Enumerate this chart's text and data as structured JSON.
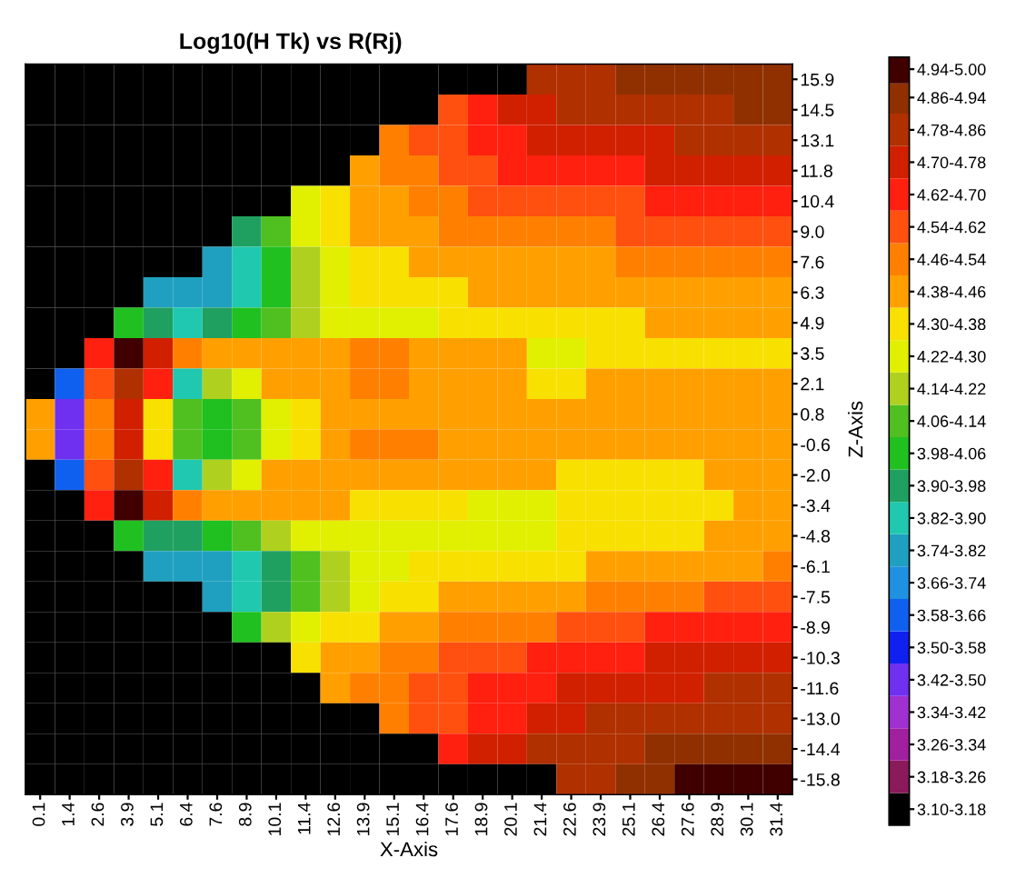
{
  "chart_data": {
    "type": "heatmap",
    "title": "Log10(H Tk) vs R(Rj)",
    "xlabel": "X-Axis",
    "ylabel": "Z-Axis",
    "categories": [
      "0.1",
      "1.4",
      "2.6",
      "3.9",
      "5.1",
      "6.4",
      "7.6",
      "8.9",
      "10.1",
      "11.4",
      "12.6",
      "13.9",
      "15.1",
      "16.4",
      "17.6",
      "18.9",
      "20.1",
      "21.4",
      "22.6",
      "23.9",
      "25.1",
      "26.4",
      "27.6",
      "28.9",
      "30.1",
      "31.4"
    ],
    "y_categories": [
      "15.9",
      "14.5",
      "13.1",
      "11.8",
      "10.4",
      "9.0",
      "7.6",
      "6.3",
      "4.9",
      "3.5",
      "2.1",
      "0.8",
      "-0.6",
      "-2.0",
      "-3.4",
      "-4.8",
      "-6.1",
      "-7.5",
      "-8.9",
      "-10.3",
      "-11.6",
      "-13.0",
      "-14.4",
      "-15.8"
    ],
    "cells": [
      [
        3.14,
        3.14,
        3.14,
        3.14,
        3.14,
        3.14,
        3.14,
        3.14,
        3.14,
        3.14,
        3.14,
        3.14,
        3.14,
        3.14,
        3.14,
        3.14,
        3.14,
        4.82,
        4.82,
        4.82,
        4.9,
        4.9,
        4.9,
        4.9,
        4.9,
        4.9
      ],
      [
        3.14,
        3.14,
        3.14,
        3.14,
        3.14,
        3.14,
        3.14,
        3.14,
        3.14,
        3.14,
        3.14,
        3.14,
        3.14,
        3.14,
        4.58,
        4.66,
        4.74,
        4.74,
        4.82,
        4.82,
        4.82,
        4.82,
        4.82,
        4.82,
        4.9,
        4.9
      ],
      [
        3.14,
        3.14,
        3.14,
        3.14,
        3.14,
        3.14,
        3.14,
        3.14,
        3.14,
        3.14,
        3.14,
        3.14,
        4.5,
        4.58,
        4.58,
        4.66,
        4.66,
        4.74,
        4.74,
        4.74,
        4.74,
        4.74,
        4.82,
        4.82,
        4.82,
        4.82
      ],
      [
        3.14,
        3.14,
        3.14,
        3.14,
        3.14,
        3.14,
        3.14,
        3.14,
        3.14,
        3.14,
        3.14,
        4.42,
        4.5,
        4.5,
        4.58,
        4.58,
        4.66,
        4.66,
        4.66,
        4.66,
        4.66,
        4.74,
        4.74,
        4.74,
        4.74,
        4.74
      ],
      [
        3.14,
        3.14,
        3.14,
        3.14,
        3.14,
        3.14,
        3.14,
        3.14,
        3.14,
        4.26,
        4.34,
        4.42,
        4.42,
        4.5,
        4.5,
        4.58,
        4.58,
        4.58,
        4.58,
        4.58,
        4.58,
        4.66,
        4.66,
        4.66,
        4.66,
        4.66
      ],
      [
        3.14,
        3.14,
        3.14,
        3.14,
        3.14,
        3.14,
        3.14,
        3.94,
        4.1,
        4.26,
        4.34,
        4.42,
        4.42,
        4.42,
        4.5,
        4.5,
        4.5,
        4.5,
        4.5,
        4.5,
        4.58,
        4.58,
        4.58,
        4.58,
        4.58,
        4.58
      ],
      [
        3.14,
        3.14,
        3.14,
        3.14,
        3.14,
        3.14,
        3.78,
        3.86,
        4.02,
        4.18,
        4.26,
        4.34,
        4.34,
        4.42,
        4.42,
        4.42,
        4.42,
        4.42,
        4.42,
        4.42,
        4.5,
        4.5,
        4.5,
        4.5,
        4.5,
        4.5
      ],
      [
        3.14,
        3.14,
        3.14,
        3.14,
        3.78,
        3.78,
        3.78,
        3.86,
        4.02,
        4.18,
        4.26,
        4.34,
        4.34,
        4.34,
        4.34,
        4.42,
        4.42,
        4.42,
        4.42,
        4.42,
        4.42,
        4.42,
        4.42,
        4.42,
        4.42,
        4.42
      ],
      [
        3.14,
        3.14,
        3.14,
        4.02,
        3.94,
        3.86,
        3.94,
        4.02,
        4.1,
        4.18,
        4.26,
        4.26,
        4.26,
        4.26,
        4.34,
        4.34,
        4.34,
        4.34,
        4.34,
        4.34,
        4.34,
        4.42,
        4.42,
        4.42,
        4.42,
        4.42
      ],
      [
        3.14,
        3.14,
        4.66,
        4.97,
        4.74,
        4.5,
        4.42,
        4.42,
        4.42,
        4.42,
        4.42,
        4.5,
        4.5,
        4.42,
        4.42,
        4.42,
        4.42,
        4.26,
        4.26,
        4.34,
        4.34,
        4.34,
        4.34,
        4.34,
        4.34,
        4.34
      ],
      [
        3.14,
        3.62,
        4.58,
        4.82,
        4.66,
        3.86,
        4.18,
        4.26,
        4.42,
        4.42,
        4.42,
        4.5,
        4.5,
        4.42,
        4.42,
        4.42,
        4.42,
        4.34,
        4.34,
        4.42,
        4.42,
        4.42,
        4.42,
        4.42,
        4.42,
        4.42
      ],
      [
        4.42,
        3.46,
        4.5,
        4.74,
        4.34,
        4.1,
        4.02,
        4.1,
        4.26,
        4.34,
        4.42,
        4.42,
        4.42,
        4.42,
        4.42,
        4.42,
        4.42,
        4.42,
        4.42,
        4.42,
        4.42,
        4.42,
        4.42,
        4.42,
        4.42,
        4.42
      ],
      [
        4.42,
        3.46,
        4.5,
        4.74,
        4.34,
        4.1,
        4.02,
        4.1,
        4.26,
        4.34,
        4.42,
        4.5,
        4.5,
        4.5,
        4.42,
        4.42,
        4.42,
        4.42,
        4.42,
        4.42,
        4.42,
        4.42,
        4.42,
        4.42,
        4.42,
        4.42
      ],
      [
        3.14,
        3.62,
        4.58,
        4.82,
        4.66,
        3.86,
        4.18,
        4.26,
        4.42,
        4.42,
        4.42,
        4.42,
        4.42,
        4.42,
        4.42,
        4.42,
        4.42,
        4.42,
        4.34,
        4.34,
        4.34,
        4.34,
        4.34,
        4.42,
        4.42,
        4.42
      ],
      [
        3.14,
        3.14,
        4.66,
        4.97,
        4.74,
        4.5,
        4.42,
        4.42,
        4.42,
        4.42,
        4.42,
        4.34,
        4.34,
        4.34,
        4.34,
        4.26,
        4.26,
        4.26,
        4.34,
        4.34,
        4.34,
        4.34,
        4.34,
        4.34,
        4.42,
        4.42
      ],
      [
        3.14,
        3.14,
        3.14,
        4.02,
        3.94,
        3.94,
        4.02,
        4.1,
        4.18,
        4.26,
        4.26,
        4.26,
        4.26,
        4.26,
        4.26,
        4.26,
        4.26,
        4.26,
        4.34,
        4.34,
        4.34,
        4.34,
        4.34,
        4.42,
        4.42,
        4.42
      ],
      [
        3.14,
        3.14,
        3.14,
        3.14,
        3.78,
        3.78,
        3.78,
        3.86,
        3.94,
        4.1,
        4.18,
        4.26,
        4.26,
        4.34,
        4.34,
        4.34,
        4.34,
        4.34,
        4.34,
        4.42,
        4.42,
        4.42,
        4.42,
        4.42,
        4.42,
        4.5
      ],
      [
        3.14,
        3.14,
        3.14,
        3.14,
        3.14,
        3.14,
        3.78,
        3.86,
        3.94,
        4.1,
        4.18,
        4.26,
        4.34,
        4.34,
        4.42,
        4.42,
        4.42,
        4.42,
        4.42,
        4.5,
        4.5,
        4.5,
        4.5,
        4.58,
        4.58,
        4.58
      ],
      [
        3.14,
        3.14,
        3.14,
        3.14,
        3.14,
        3.14,
        3.14,
        4.02,
        4.18,
        4.26,
        4.34,
        4.34,
        4.42,
        4.42,
        4.5,
        4.5,
        4.5,
        4.5,
        4.58,
        4.58,
        4.58,
        4.66,
        4.66,
        4.66,
        4.66,
        4.66
      ],
      [
        3.14,
        3.14,
        3.14,
        3.14,
        3.14,
        3.14,
        3.14,
        3.14,
        3.14,
        4.34,
        4.42,
        4.42,
        4.5,
        4.5,
        4.58,
        4.58,
        4.58,
        4.66,
        4.66,
        4.66,
        4.66,
        4.74,
        4.74,
        4.74,
        4.74,
        4.74
      ],
      [
        3.14,
        3.14,
        3.14,
        3.14,
        3.14,
        3.14,
        3.14,
        3.14,
        3.14,
        3.14,
        4.42,
        4.5,
        4.5,
        4.58,
        4.58,
        4.66,
        4.66,
        4.66,
        4.74,
        4.74,
        4.74,
        4.74,
        4.74,
        4.82,
        4.82,
        4.82
      ],
      [
        3.14,
        3.14,
        3.14,
        3.14,
        3.14,
        3.14,
        3.14,
        3.14,
        3.14,
        3.14,
        3.14,
        3.14,
        4.5,
        4.58,
        4.58,
        4.66,
        4.66,
        4.74,
        4.74,
        4.82,
        4.82,
        4.82,
        4.82,
        4.82,
        4.82,
        4.82
      ],
      [
        3.14,
        3.14,
        3.14,
        3.14,
        3.14,
        3.14,
        3.14,
        3.14,
        3.14,
        3.14,
        3.14,
        3.14,
        3.14,
        3.14,
        4.66,
        4.74,
        4.74,
        4.82,
        4.82,
        4.82,
        4.82,
        4.9,
        4.9,
        4.9,
        4.9,
        4.9
      ],
      [
        3.14,
        3.14,
        3.14,
        3.14,
        3.14,
        3.14,
        3.14,
        3.14,
        3.14,
        3.14,
        3.14,
        3.14,
        3.14,
        3.14,
        3.14,
        3.14,
        3.14,
        3.14,
        4.82,
        4.82,
        4.9,
        4.9,
        4.97,
        4.97,
        4.97,
        4.97
      ]
    ],
    "clim": [
      3.1,
      5.0
    ],
    "cticks": [
      {
        "value": 3.14,
        "label": "3.10-3.18"
      },
      {
        "value": 3.22,
        "label": "3.18-3.26"
      },
      {
        "value": 3.3,
        "label": "3.26-3.34"
      },
      {
        "value": 3.38,
        "label": "3.34-3.42"
      },
      {
        "value": 3.46,
        "label": "3.42-3.50"
      },
      {
        "value": 3.54,
        "label": "3.50-3.58"
      },
      {
        "value": 3.62,
        "label": "3.58-3.66"
      },
      {
        "value": 3.7,
        "label": "3.66-3.74"
      },
      {
        "value": 3.78,
        "label": "3.74-3.82"
      },
      {
        "value": 3.86,
        "label": "3.82-3.90"
      },
      {
        "value": 3.94,
        "label": "3.90-3.98"
      },
      {
        "value": 4.02,
        "label": "3.98-4.06"
      },
      {
        "value": 4.1,
        "label": "4.06-4.14"
      },
      {
        "value": 4.18,
        "label": "4.14-4.22"
      },
      {
        "value": 4.26,
        "label": "4.22-4.30"
      },
      {
        "value": 4.34,
        "label": "4.30-4.38"
      },
      {
        "value": 4.42,
        "label": "4.38-4.46"
      },
      {
        "value": 4.5,
        "label": "4.46-4.54"
      },
      {
        "value": 4.58,
        "label": "4.54-4.62"
      },
      {
        "value": 4.66,
        "label": "4.62-4.70"
      },
      {
        "value": 4.74,
        "label": "4.70-4.78"
      },
      {
        "value": 4.82,
        "label": "4.78-4.86"
      },
      {
        "value": 4.9,
        "label": "4.86-4.94"
      },
      {
        "value": 4.97,
        "label": "4.94-5.00"
      }
    ],
    "colors": [
      "#000000",
      "#8b1a5a",
      "#a020a0",
      "#a030d0",
      "#7030f0",
      "#1020f0",
      "#1060f0",
      "#2090e0",
      "#20a0c0",
      "#20c8b0",
      "#20a060",
      "#20c020",
      "#50c020",
      "#b0d020",
      "#e0f000",
      "#f8e000",
      "#ffa000",
      "#ff8000",
      "#ff5010",
      "#ff2010",
      "#d02000",
      "#b03000",
      "#903000",
      "#400000"
    ],
    "grid": false
  }
}
